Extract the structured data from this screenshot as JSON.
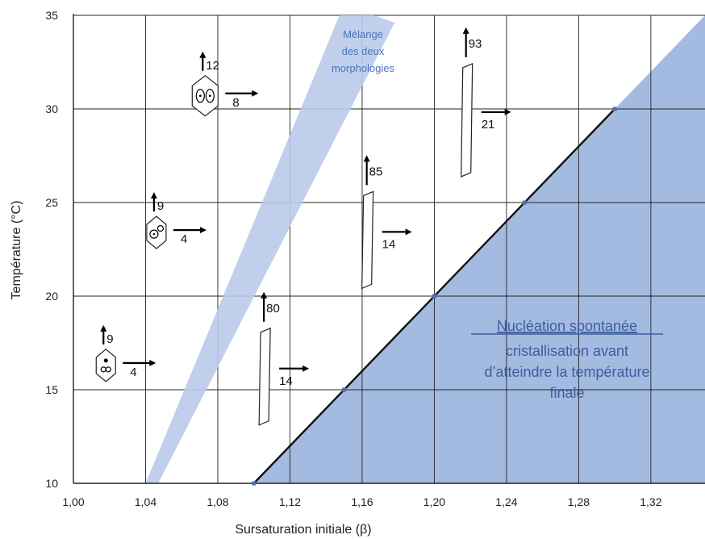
{
  "chart_data": {
    "type": "line",
    "xlabel": "Sursaturation initiale (β)",
    "ylabel": "Température (°C)",
    "xlim": [
      1.0,
      1.35
    ],
    "ylim": [
      10,
      35
    ],
    "xticks": [
      "1,00",
      "1,04",
      "1,08",
      "1,12",
      "1,16",
      "1,20",
      "1,24",
      "1,28",
      "1,32"
    ],
    "yticks": [
      "10",
      "15",
      "20",
      "25",
      "30",
      "35"
    ],
    "grid": true,
    "colors": {
      "region": "#a3bbe0",
      "band": "#b9cbea",
      "line": "#111111",
      "text_region": "#3d5d9e"
    },
    "nucleation_line": {
      "x": [
        1.1,
        1.3
      ],
      "y": [
        10,
        30
      ]
    },
    "nucleation_region": {
      "label_underlined": "Nucléation spontanée",
      "label_lines": [
        "cristallisation avant",
        "d’atteindre la température",
        "finale"
      ]
    },
    "mixing_band": {
      "label_lines": [
        "Mélange",
        "des deux",
        "morphologies"
      ]
    },
    "crystals": [
      {
        "shape": "hexagon-dots",
        "x": 1.018,
        "y": 16.3,
        "growth_length": "9",
        "growth_width": "4"
      },
      {
        "shape": "hexagon-circles",
        "x": 1.046,
        "y": 23.4,
        "growth_length": "9",
        "growth_width": "4"
      },
      {
        "shape": "hexagon-eyes",
        "x": 1.073,
        "y": 30.7,
        "growth_length": "12",
        "growth_width": "8"
      },
      {
        "shape": "needle",
        "x": 1.106,
        "y": 15.7,
        "growth_length": "80",
        "growth_width": "14"
      },
      {
        "shape": "needle",
        "x": 1.163,
        "y": 23.0,
        "growth_length": "85",
        "growth_width": "14"
      },
      {
        "shape": "needle",
        "x": 1.218,
        "y": 29.4,
        "growth_length": "93",
        "growth_width": "21"
      }
    ]
  }
}
